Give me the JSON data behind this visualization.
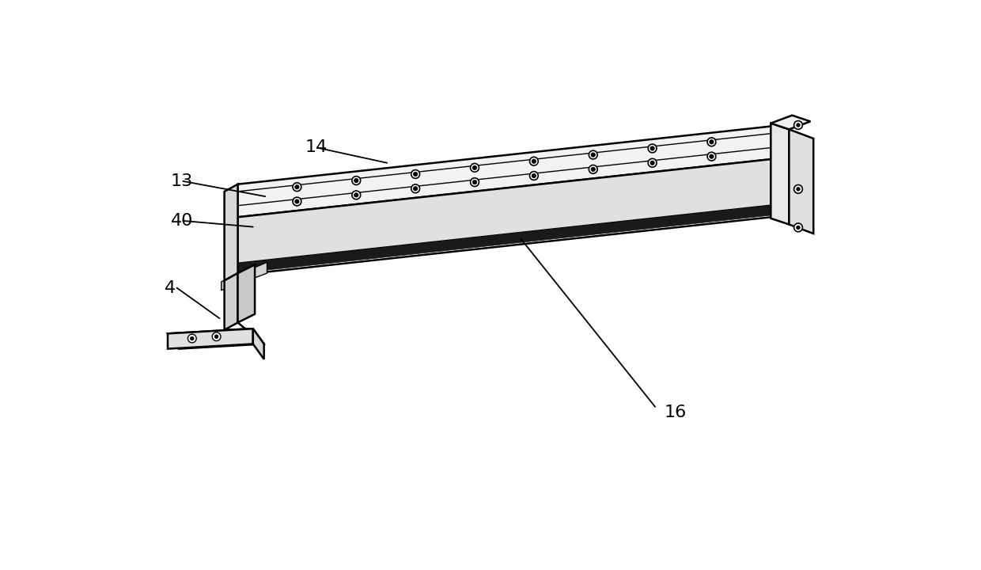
{
  "bg_color": "#ffffff",
  "line_color": "#000000",
  "label_color": "#000000",
  "figsize": [
    12.4,
    7.2
  ],
  "dpi": 100,
  "font_size": 16
}
